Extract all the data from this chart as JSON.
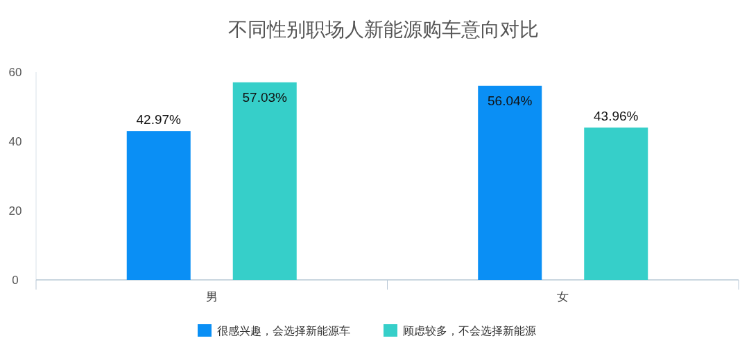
{
  "chart_data": {
    "type": "bar",
    "title": "不同性别职场人新能源购车意向对比",
    "categories": [
      "男",
      "女"
    ],
    "series": [
      {
        "name": "很感兴趣，会选择新能源车",
        "color": "#0a8ff5",
        "values": [
          42.97,
          56.04
        ],
        "value_labels": [
          "42.97%",
          "56.04%"
        ]
      },
      {
        "name": "顾虑较多，不会选择新能源",
        "color": "#36cfc9",
        "values": [
          57.03,
          43.96
        ],
        "value_labels": [
          "57.03%",
          "43.96%"
        ]
      }
    ],
    "ylim": [
      0,
      60
    ],
    "yticks": [
      0,
      20,
      40,
      60
    ],
    "grid": false,
    "legend": "bottom"
  }
}
